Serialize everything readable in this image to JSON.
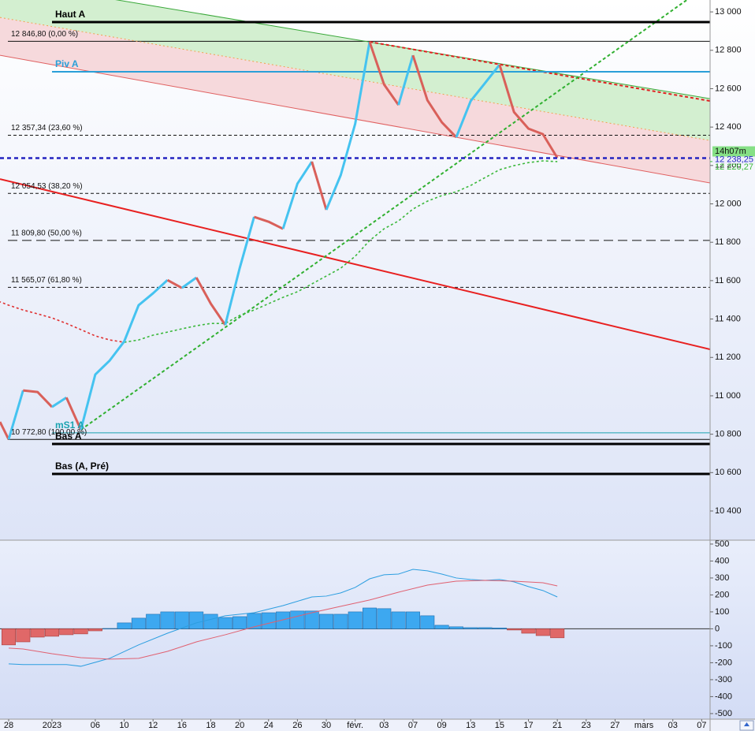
{
  "chart_data": [
    {
      "type": "line",
      "xlim": [
        -0.6,
        48.58
      ],
      "xticks": [
        {
          "value": 0,
          "label": "28"
        },
        {
          "value": 3,
          "label": "2023"
        },
        {
          "value": 6,
          "label": "06"
        },
        {
          "value": 8,
          "label": "10"
        },
        {
          "value": 10,
          "label": "12"
        },
        {
          "value": 12,
          "label": "16"
        },
        {
          "value": 14,
          "label": "18"
        },
        {
          "value": 16,
          "label": "20"
        },
        {
          "value": 18,
          "label": "24"
        },
        {
          "value": 20,
          "label": "26"
        },
        {
          "value": 22,
          "label": "30"
        },
        {
          "value": 24,
          "label": "févr."
        },
        {
          "value": 26,
          "label": "03"
        },
        {
          "value": 28,
          "label": "07"
        },
        {
          "value": 30,
          "label": "09"
        },
        {
          "value": 32,
          "label": "13"
        },
        {
          "value": 34,
          "label": "15"
        },
        {
          "value": 36,
          "label": "17"
        },
        {
          "value": 38,
          "label": "21"
        },
        {
          "value": 40,
          "label": "23"
        },
        {
          "value": 42,
          "label": "27"
        },
        {
          "value": 44,
          "label": "mars"
        },
        {
          "value": 46,
          "label": "03"
        },
        {
          "value": 48,
          "label": "07"
        }
      ],
      "ylim": [
        10248,
        13062
      ],
      "yticks": [
        {
          "value": 13000,
          "label": "13 000"
        },
        {
          "value": 12800,
          "label": "12 800"
        },
        {
          "value": 12600,
          "label": "12 600"
        },
        {
          "value": 12400,
          "label": "12 400"
        },
        {
          "value": 12200,
          "label": "12 200"
        },
        {
          "value": 12000,
          "label": "12 000"
        },
        {
          "value": 11800,
          "label": "11 800"
        },
        {
          "value": 11600,
          "label": "11 600"
        },
        {
          "value": 11400,
          "label": "11 400"
        },
        {
          "value": 11200,
          "label": "11 200"
        },
        {
          "value": 11000,
          "label": "11 000"
        },
        {
          "value": 10800,
          "label": "10 800"
        },
        {
          "value": 10600,
          "label": "10 600"
        },
        {
          "value": 10400,
          "label": "10 400"
        }
      ],
      "series": [
        {
          "up_color": "#45c3f0",
          "down_color": "#d9605a",
          "x": [
            -0.6,
            0,
            1,
            2,
            3,
            4,
            5,
            6,
            7,
            8,
            9,
            10,
            11,
            12,
            13,
            14,
            15,
            16,
            17,
            18,
            19,
            20,
            21,
            22,
            23,
            24,
            25,
            26,
            27,
            28,
            29,
            30,
            31,
            32,
            33,
            34,
            35,
            36,
            37,
            38
          ],
          "values": [
            10864,
            10773,
            11028,
            11020,
            10942,
            10991,
            10823,
            11111,
            11184,
            11283,
            11472,
            11534,
            11603,
            11562,
            11616,
            11480,
            11369,
            11665,
            11932,
            11907,
            11870,
            12105,
            12220,
            11969,
            12150,
            12417,
            12844,
            12622,
            12515,
            12774,
            12540,
            12425,
            12347,
            12536,
            12630,
            12725,
            12478,
            12392,
            12363,
            12240
          ]
        }
      ],
      "averages": [
        {
          "color": "#e03030",
          "x": [
            -1,
            0,
            1,
            2,
            3,
            4,
            5,
            6,
            7,
            8
          ],
          "values": [
            11501,
            11472,
            11447,
            11427,
            11406,
            11377,
            11345,
            11312,
            11291,
            11279
          ]
        },
        {
          "color": "#3cb83c",
          "x": [
            8,
            9,
            10,
            11,
            12,
            13,
            14,
            15,
            16,
            17,
            18,
            19,
            20,
            21,
            22,
            23,
            24,
            25,
            26,
            27,
            28,
            29,
            30,
            31,
            32,
            33,
            34,
            35,
            36,
            37,
            38
          ],
          "values": [
            11279,
            11291,
            11316,
            11332,
            11349,
            11365,
            11377,
            11377,
            11419,
            11447,
            11480,
            11513,
            11542,
            11583,
            11624,
            11665,
            11727,
            11809,
            11870,
            11911,
            11973,
            12014,
            12043,
            12063,
            12096,
            12137,
            12178,
            12199,
            12215,
            12224,
            12220
          ]
        }
      ],
      "trendlines": [
        {
          "color": "#3aa83a",
          "style": "solid",
          "width": 1,
          "x": [
            -0.6,
            48.58
          ],
          "values": [
            13164,
            12548
          ]
        },
        {
          "color": "#f0a050",
          "style": "dotted",
          "width": 1,
          "x": [
            -0.6,
            48.58
          ],
          "values": [
            12971,
            12330
          ]
        },
        {
          "color": "#e06060",
          "style": "solid",
          "width": 1,
          "x": [
            -0.6,
            48.58
          ],
          "values": [
            12774,
            12109
          ]
        },
        {
          "color": "#e02020",
          "style": "dashed",
          "width": 2,
          "x": [
            25,
            48.58
          ],
          "values": [
            12844,
            12536
          ]
        },
        {
          "color": "#e82020",
          "style": "solid",
          "width": 2,
          "x": [
            -0.6,
            48.58
          ],
          "values": [
            12129,
            11242
          ]
        },
        {
          "color": "#30b030",
          "style": "dashed",
          "width": 2,
          "x": [
            5,
            48.58
          ],
          "values": [
            10823,
            13148
          ]
        }
      ],
      "bands": [
        {
          "between": [
            0,
            1
          ],
          "color": "#d3efd0"
        },
        {
          "between": [
            1,
            2
          ],
          "color": "#f6d9dc"
        }
      ],
      "fibonacci": [
        {
          "label": "12 846,80 (0,00 %)",
          "value": 12846.8,
          "style": "solid"
        },
        {
          "label": "12 357,34 (23,60 %)",
          "value": 12357.34,
          "style": "dashed"
        },
        {
          "label": "12 054,53 (38,20 %)",
          "value": 12054.53,
          "style": "dashed"
        },
        {
          "label": "11 809,80 (50,00 %)",
          "value": 11809.8,
          "style": "longdash"
        },
        {
          "label": "11 565,07 (61,80 %)",
          "value": 11565.07,
          "style": "dashed"
        },
        {
          "label": "10 772,80 (100,00 %)",
          "value": 10772.8,
          "style": "solid"
        }
      ],
      "pivots": [
        {
          "label": "Haut A",
          "value": 12947,
          "color": "#000000",
          "width": 3
        },
        {
          "label": "Piv A",
          "value": 12688,
          "color": "#2a9fd8",
          "width": 2
        },
        {
          "label": "mS1 A",
          "value": 10807,
          "color": "#1aa3b0",
          "width": 1
        },
        {
          "label": "Bas A",
          "value": 10749,
          "color": "#000000",
          "width": 3
        },
        {
          "label": "Bas (A, Pré)",
          "value": 10593,
          "color": "#000000",
          "width": 3
        }
      ],
      "last_price": {
        "label": "12 238,25",
        "value": 12238.25,
        "color": "#2424c0"
      },
      "average_last": {
        "label": "12 220,27",
        "value": 12220.27,
        "color": "#3cb83c"
      },
      "time": "14h07m"
    },
    {
      "type": "bar",
      "ylim": [
        -533,
        523
      ],
      "yticks": [
        500,
        400,
        300,
        200,
        100,
        0,
        -100,
        -200,
        -300,
        -400,
        -500
      ],
      "pos_color": "#3da8f0",
      "neg_color": "#e06868",
      "x": [
        0,
        1,
        2,
        3,
        4,
        5,
        6,
        7,
        8,
        9,
        10,
        11,
        12,
        13,
        14,
        15,
        16,
        17,
        18,
        19,
        20,
        21,
        22,
        23,
        24,
        25,
        26,
        27,
        28,
        29,
        30,
        31,
        32,
        33,
        34,
        35,
        36,
        37,
        38
      ],
      "values": [
        -95,
        -77,
        -49,
        -44,
        -35,
        -30,
        -12,
        2,
        35,
        63,
        86,
        100,
        100,
        100,
        86,
        67,
        72,
        91,
        95,
        100,
        105,
        105,
        86,
        86,
        100,
        123,
        119,
        100,
        100,
        77,
        21,
        12,
        7,
        7,
        5,
        -7,
        -26,
        -40,
        -53
      ],
      "lines": [
        {
          "color": "#2c9ee0",
          "x": [
            0,
            1,
            3,
            4,
            5,
            7,
            9,
            11,
            13,
            15,
            17,
            19,
            21,
            22,
            23,
            24,
            25,
            26,
            27,
            28,
            29,
            30,
            31,
            32,
            33,
            34,
            35,
            36,
            37,
            38
          ],
          "values": [
            -207,
            -211,
            -211,
            -211,
            -221,
            -174,
            -95,
            -26,
            35,
            77,
            95,
            137,
            188,
            193,
            212,
            244,
            295,
            319,
            323,
            351,
            342,
            323,
            300,
            291,
            286,
            291,
            277,
            249,
            226,
            188
          ]
        },
        {
          "color": "#e06070",
          "x": [
            0,
            1,
            3,
            5,
            7,
            9,
            11,
            13,
            15,
            17,
            19,
            21,
            23,
            25,
            27,
            29,
            31,
            33,
            35,
            37,
            38
          ],
          "values": [
            -114,
            -119,
            -147,
            -170,
            -179,
            -174,
            -133,
            -77,
            -35,
            12,
            53,
            95,
            133,
            170,
            216,
            258,
            281,
            286,
            281,
            272,
            253
          ]
        }
      ]
    }
  ]
}
